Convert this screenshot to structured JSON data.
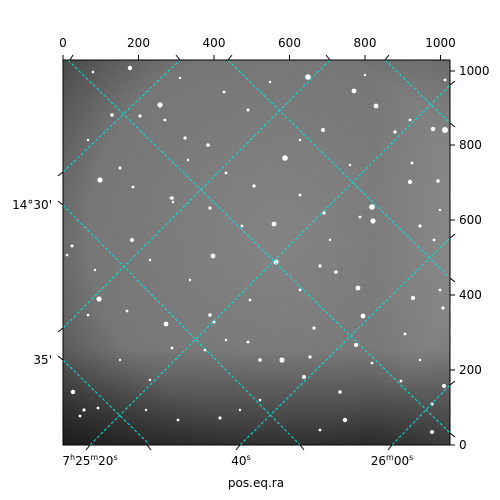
{
  "figure": {
    "xlabel": "pos.eq.ra",
    "pixel_x_ticks": [
      "0",
      "200",
      "400",
      "600",
      "800",
      "1000"
    ],
    "pixel_y_ticks": [
      "0",
      "200",
      "400",
      "600",
      "800",
      "1000"
    ],
    "ra_ticks": [
      {
        "main": "7",
        "h": "h",
        "mid": "25",
        "m": "m",
        "tail": "20",
        "s": "s"
      },
      {
        "main": "40",
        "s": "s"
      },
      {
        "main": "26",
        "m": "m",
        "tail": "00",
        "s": "s"
      }
    ],
    "dec_ticks": [
      "14°30'",
      "35'"
    ],
    "colors": {
      "grid": "#00e5e5",
      "sky_dark": "#1a1a1a",
      "sky_mid": "#6e6e6e",
      "sky_light": "#8c8c8c",
      "stars": "#ffffff",
      "frame": "#000000",
      "background": "#ffffff"
    }
  }
}
